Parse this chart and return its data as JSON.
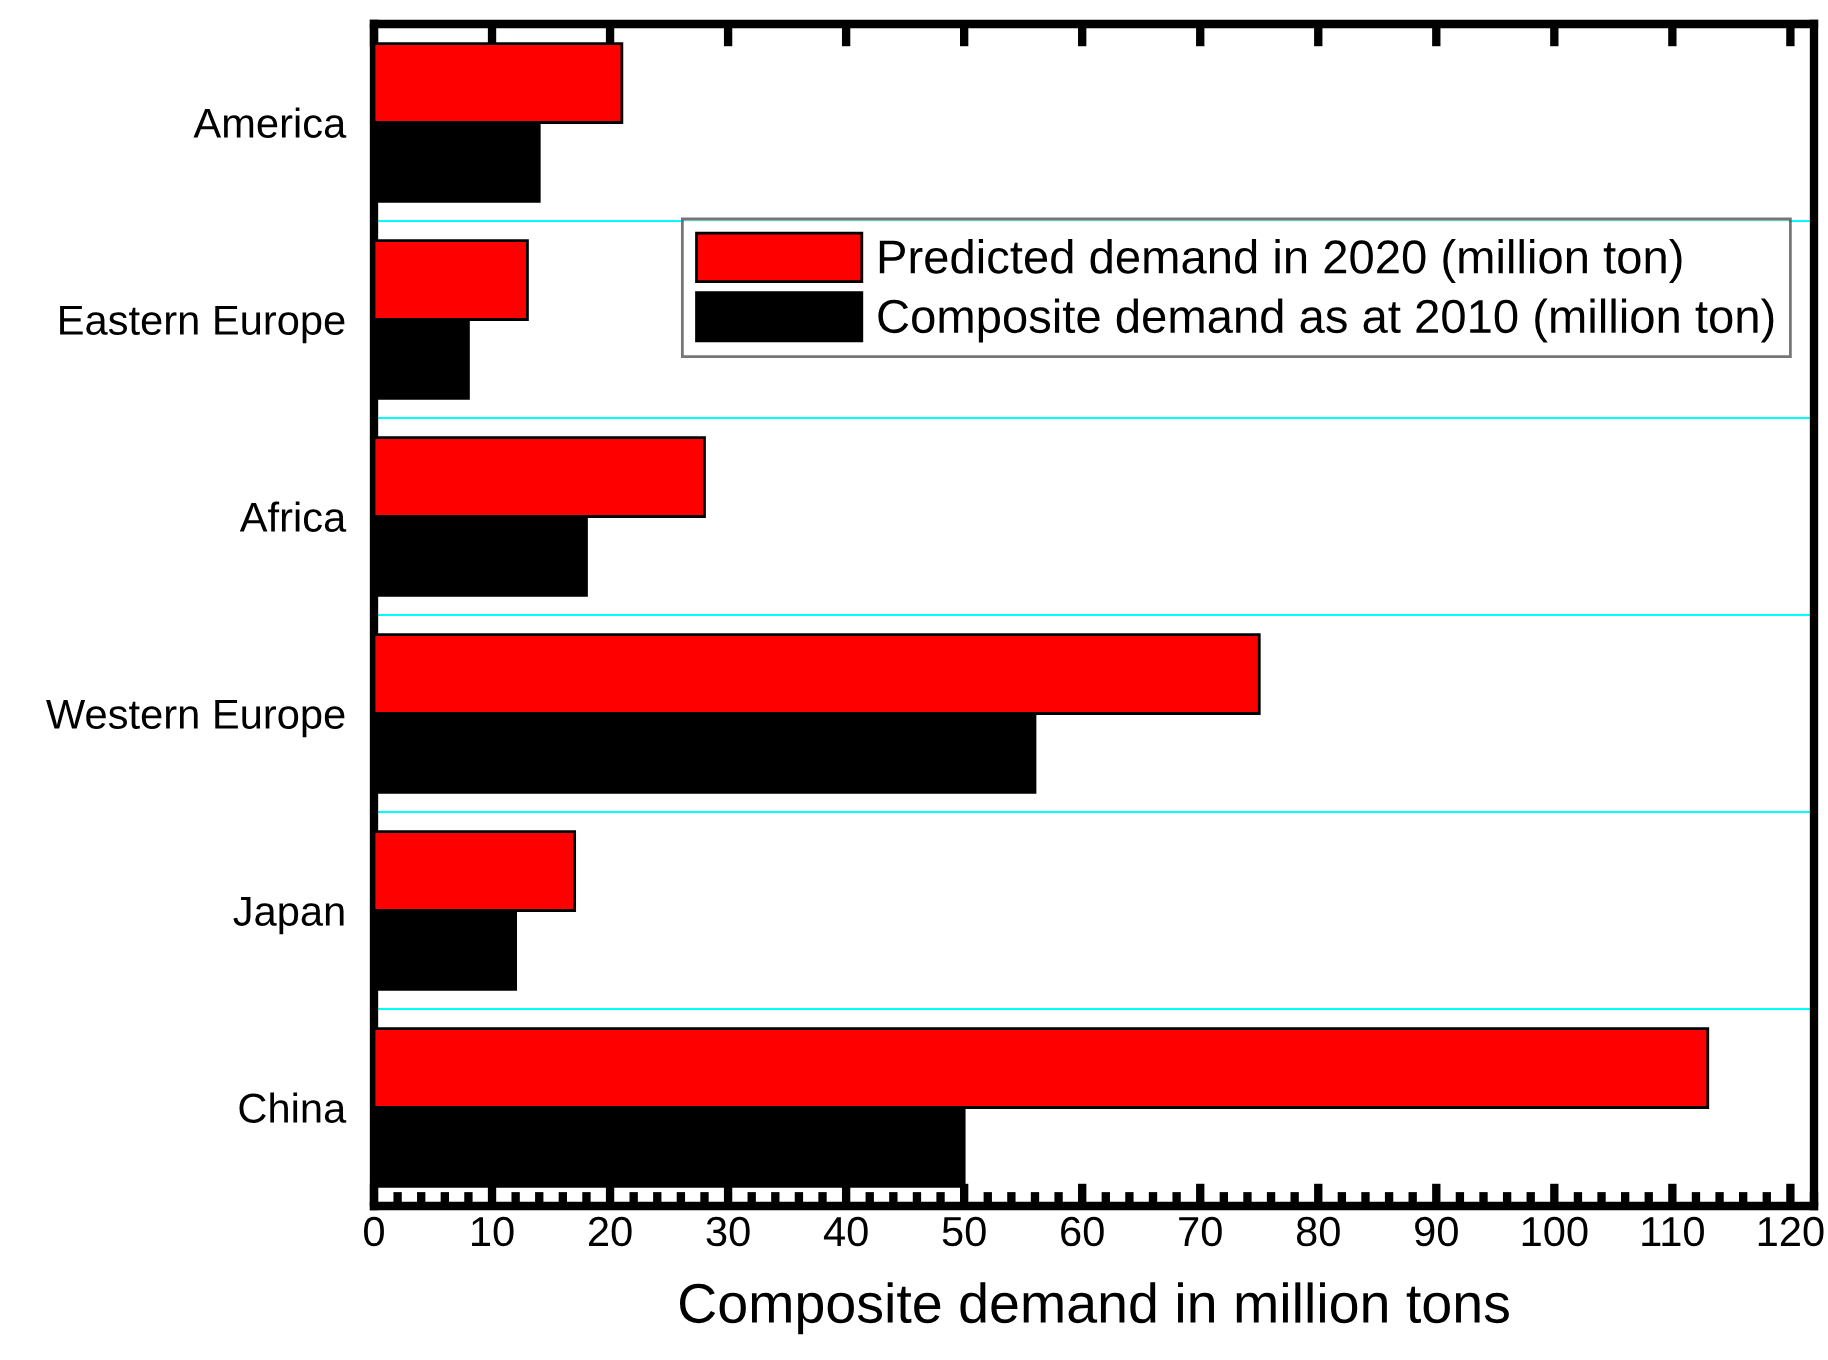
{
  "chart_data": {
    "type": "bar",
    "orientation": "horizontal",
    "xlabel": "Composite demand in million tons",
    "categories": [
      "America",
      "Eastern Europe",
      "Africa",
      "Western Europe",
      "Japan",
      "China"
    ],
    "series": [
      {
        "name": "Predicted demand in 2020 (million ton)",
        "color": "#ff0000",
        "values": [
          21,
          13,
          28,
          75,
          17,
          113
        ]
      },
      {
        "name": "Composite demand as at 2010 (million ton)",
        "color": "#000000",
        "values": [
          14,
          8,
          18,
          56,
          12,
          50
        ]
      }
    ],
    "xlim": [
      0,
      122
    ],
    "xticks": [
      0,
      10,
      20,
      30,
      40,
      50,
      60,
      70,
      80,
      90,
      100,
      110,
      120
    ],
    "grid": "y",
    "legend": "top right"
  }
}
